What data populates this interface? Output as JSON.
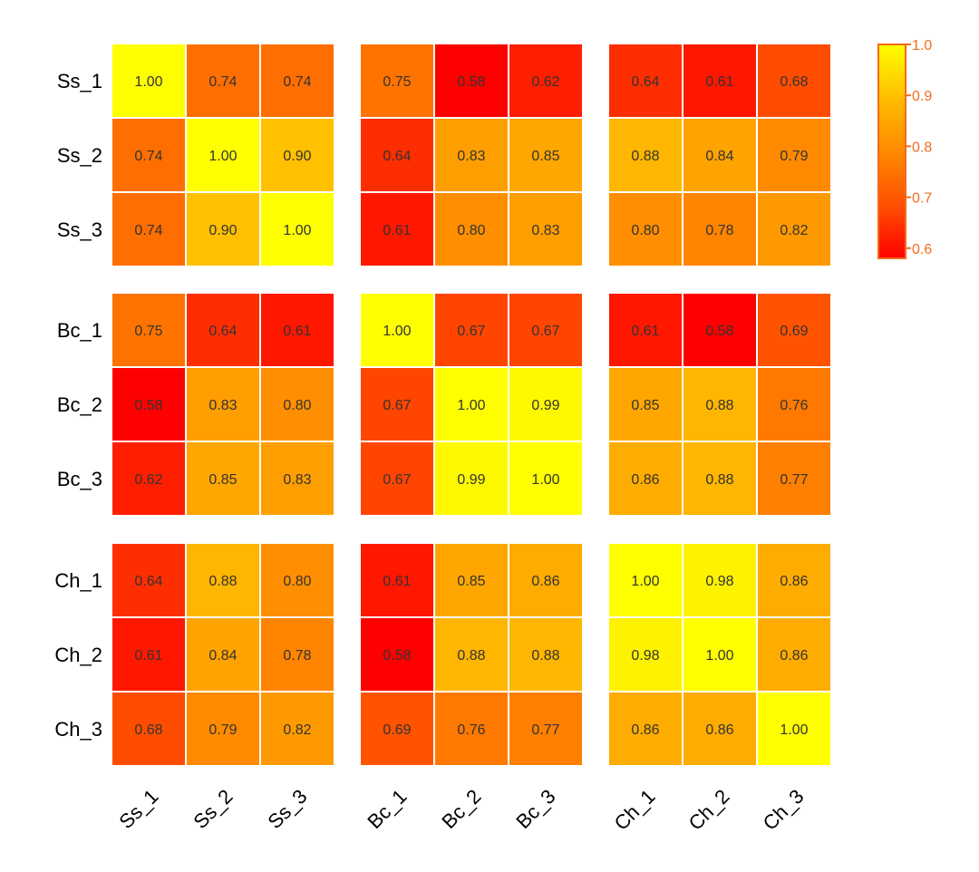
{
  "chart_data": {
    "type": "heatmap",
    "title": "",
    "xlabel": "",
    "ylabel": "",
    "rows": [
      "Ss_1",
      "Ss_2",
      "Ss_3",
      "Bc_1",
      "Bc_2",
      "Bc_3",
      "Ch_1",
      "Ch_2",
      "Ch_3"
    ],
    "columns": [
      "Ss_1",
      "Ss_2",
      "Ss_3",
      "Bc_1",
      "Bc_2",
      "Bc_3",
      "Ch_1",
      "Ch_2",
      "Ch_3"
    ],
    "row_groups": [
      "Ss",
      "Bc",
      "Ch"
    ],
    "column_groups": [
      "Ss",
      "Bc",
      "Ch"
    ],
    "values": [
      [
        1.0,
        0.74,
        0.74,
        0.75,
        0.58,
        0.62,
        0.64,
        0.61,
        0.68
      ],
      [
        0.74,
        1.0,
        0.9,
        0.64,
        0.83,
        0.85,
        0.88,
        0.84,
        0.79
      ],
      [
        0.74,
        0.9,
        1.0,
        0.61,
        0.8,
        0.83,
        0.8,
        0.78,
        0.82
      ],
      [
        0.75,
        0.64,
        0.61,
        1.0,
        0.67,
        0.67,
        0.61,
        0.58,
        0.69
      ],
      [
        0.58,
        0.83,
        0.8,
        0.67,
        1.0,
        0.99,
        0.85,
        0.88,
        0.76
      ],
      [
        0.62,
        0.85,
        0.83,
        0.67,
        0.99,
        1.0,
        0.86,
        0.88,
        0.77
      ],
      [
        0.64,
        0.88,
        0.8,
        0.61,
        0.85,
        0.86,
        1.0,
        0.98,
        0.86
      ],
      [
        0.61,
        0.84,
        0.78,
        0.58,
        0.88,
        0.88,
        0.98,
        1.0,
        0.86
      ],
      [
        0.68,
        0.79,
        0.82,
        0.69,
        0.76,
        0.77,
        0.86,
        0.86,
        1.0
      ]
    ],
    "value_labels": [
      [
        "1.00",
        "0.74",
        "0.74",
        "0.75",
        "0.58",
        "0.62",
        "0.64",
        "0.61",
        "0.68"
      ],
      [
        "0.74",
        "1.00",
        "0.90",
        "0.64",
        "0.83",
        "0.85",
        "0.88",
        "0.84",
        "0.79"
      ],
      [
        "0.74",
        "0.90",
        "1.00",
        "0.61",
        "0.80",
        "0.83",
        "0.80",
        "0.78",
        "0.82"
      ],
      [
        "0.75",
        "0.64",
        "0.61",
        "1.00",
        "0.67",
        "0.67",
        "0.61",
        "0.58",
        "0.69"
      ],
      [
        "0.58",
        "0.83",
        "0.80",
        "0.67",
        "1.00",
        "0.99",
        "0.85",
        "0.88",
        "0.76"
      ],
      [
        "0.62",
        "0.85",
        "0.83",
        "0.67",
        "0.99",
        "1.00",
        "0.86",
        "0.88",
        "0.77"
      ],
      [
        "0.64",
        "0.88",
        "0.80",
        "0.61",
        "0.85",
        "0.86",
        "1.00",
        "0.98",
        "0.86"
      ],
      [
        "0.61",
        "0.84",
        "0.78",
        "0.58",
        "0.88",
        "0.88",
        "0.98",
        "1.00",
        "0.86"
      ],
      [
        "0.68",
        "0.79",
        "0.82",
        "0.69",
        "0.76",
        "0.77",
        "0.86",
        "0.86",
        "1.00"
      ]
    ],
    "color_scale": {
      "min": 0.58,
      "max": 1.0,
      "stops": [
        {
          "value": 0.58,
          "color": "#ff0000"
        },
        {
          "value": 0.68,
          "color": "#ff4d00"
        },
        {
          "value": 0.79,
          "color": "#ff8a00"
        },
        {
          "value": 0.9,
          "color": "#ffc000"
        },
        {
          "value": 1.0,
          "color": "#ffff00"
        }
      ]
    },
    "legend": {
      "position": "top-right",
      "ticks": [
        "1.0",
        "0.9",
        "0.8",
        "0.7",
        "0.6"
      ],
      "tick_values": [
        1.0,
        0.9,
        0.8,
        0.7,
        0.6
      ],
      "color": "#f26b1d"
    },
    "cell_text_color": "#333333",
    "axis_text_color": "#000000",
    "separator_color": "#ffffff"
  }
}
